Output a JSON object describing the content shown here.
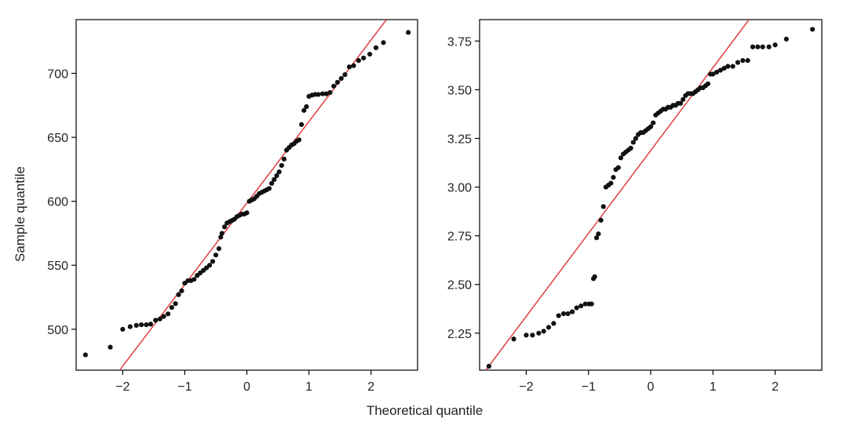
{
  "figure": {
    "xlabel": "Theoretical quantile",
    "ylabel": "Sample quantile"
  },
  "colors": {
    "points": "#111111",
    "ref_line": "#e0474c",
    "axes": "#000000"
  },
  "chart_data": [
    {
      "type": "scatter",
      "title": "",
      "xlim": [
        -2.75,
        2.75
      ],
      "ylim": [
        468,
        742
      ],
      "xticks": [
        -2,
        -1,
        0,
        1,
        2
      ],
      "xtick_labels": [
        "−2",
        "−1",
        "0",
        "1",
        "2"
      ],
      "yticks": [
        500,
        550,
        600,
        650,
        700
      ],
      "ytick_labels": [
        "500",
        "550",
        "600",
        "650",
        "700"
      ],
      "grid": false,
      "reference_line": {
        "points": [
          [
            -2.05,
            468
          ],
          [
            2.25,
            742
          ]
        ]
      },
      "points": [
        [
          -2.6,
          480
        ],
        [
          -2.2,
          486
        ],
        [
          -2.0,
          500
        ],
        [
          -1.88,
          502
        ],
        [
          -1.78,
          503
        ],
        [
          -1.7,
          503.5
        ],
        [
          -1.62,
          503.5
        ],
        [
          -1.55,
          504
        ],
        [
          -1.47,
          507
        ],
        [
          -1.4,
          508
        ],
        [
          -1.34,
          510
        ],
        [
          -1.27,
          512
        ],
        [
          -1.21,
          517
        ],
        [
          -1.15,
          520
        ],
        [
          -1.1,
          527
        ],
        [
          -1.05,
          530
        ],
        [
          -1.0,
          536
        ],
        [
          -0.95,
          538
        ],
        [
          -0.9,
          538
        ],
        [
          -0.85,
          539
        ],
        [
          -0.8,
          542
        ],
        [
          -0.75,
          544
        ],
        [
          -0.7,
          546
        ],
        [
          -0.65,
          548
        ],
        [
          -0.6,
          550
        ],
        [
          -0.55,
          553
        ],
        [
          -0.5,
          558
        ],
        [
          -0.45,
          563
        ],
        [
          -0.42,
          572
        ],
        [
          -0.4,
          575
        ],
        [
          -0.36,
          580
        ],
        [
          -0.32,
          583
        ],
        [
          -0.28,
          584
        ],
        [
          -0.24,
          585
        ],
        [
          -0.2,
          586
        ],
        [
          -0.16,
          588
        ],
        [
          -0.12,
          589
        ],
        [
          -0.08,
          590
        ],
        [
          -0.04,
          590
        ],
        [
          0.0,
          591
        ],
        [
          0.04,
          600
        ],
        [
          0.08,
          601
        ],
        [
          0.12,
          602
        ],
        [
          0.16,
          604
        ],
        [
          0.2,
          606
        ],
        [
          0.24,
          607
        ],
        [
          0.28,
          608
        ],
        [
          0.32,
          609
        ],
        [
          0.36,
          610
        ],
        [
          0.4,
          614
        ],
        [
          0.44,
          617
        ],
        [
          0.48,
          620
        ],
        [
          0.52,
          623
        ],
        [
          0.56,
          628
        ],
        [
          0.6,
          633
        ],
        [
          0.64,
          640
        ],
        [
          0.68,
          642
        ],
        [
          0.72,
          644
        ],
        [
          0.76,
          645
        ],
        [
          0.8,
          647
        ],
        [
          0.84,
          648
        ],
        [
          0.88,
          660
        ],
        [
          0.92,
          671
        ],
        [
          0.96,
          674
        ],
        [
          1.0,
          682
        ],
        [
          1.05,
          683
        ],
        [
          1.1,
          683.5
        ],
        [
          1.15,
          683.5
        ],
        [
          1.22,
          684
        ],
        [
          1.28,
          684
        ],
        [
          1.34,
          685
        ],
        [
          1.4,
          690
        ],
        [
          1.46,
          693
        ],
        [
          1.52,
          696
        ],
        [
          1.58,
          699
        ],
        [
          1.65,
          705
        ],
        [
          1.72,
          706
        ],
        [
          1.8,
          710
        ],
        [
          1.88,
          712
        ],
        [
          1.98,
          715
        ],
        [
          2.08,
          720
        ],
        [
          2.2,
          724
        ],
        [
          2.6,
          732
        ]
      ]
    },
    {
      "type": "scatter",
      "title": "",
      "xlim": [
        -2.75,
        2.75
      ],
      "ylim": [
        2.06,
        3.86
      ],
      "xticks": [
        -2,
        -1,
        0,
        1,
        2
      ],
      "xtick_labels": [
        "−2",
        "−1",
        "0",
        "1",
        "2"
      ],
      "yticks": [
        2.25,
        2.5,
        2.75,
        3.0,
        3.25,
        3.5,
        3.75
      ],
      "ytick_labels": [
        "2.25",
        "2.50",
        "2.75",
        "3.00",
        "3.25",
        "3.50",
        "3.75"
      ],
      "grid": false,
      "reference_line": {
        "points": [
          [
            -2.65,
            2.06
          ],
          [
            1.58,
            3.86
          ]
        ]
      },
      "points": [
        [
          -2.6,
          2.08
        ],
        [
          -2.2,
          2.22
        ],
        [
          -2.0,
          2.24
        ],
        [
          -1.9,
          2.24
        ],
        [
          -1.8,
          2.25
        ],
        [
          -1.72,
          2.26
        ],
        [
          -1.64,
          2.28
        ],
        [
          -1.56,
          2.3
        ],
        [
          -1.48,
          2.34
        ],
        [
          -1.4,
          2.35
        ],
        [
          -1.33,
          2.35
        ],
        [
          -1.26,
          2.36
        ],
        [
          -1.19,
          2.38
        ],
        [
          -1.12,
          2.39
        ],
        [
          -1.05,
          2.4
        ],
        [
          -0.99,
          2.4
        ],
        [
          -0.95,
          2.4
        ],
        [
          -0.92,
          2.53
        ],
        [
          -0.9,
          2.54
        ],
        [
          -0.87,
          2.74
        ],
        [
          -0.84,
          2.76
        ],
        [
          -0.8,
          2.83
        ],
        [
          -0.76,
          2.9
        ],
        [
          -0.72,
          3.0
        ],
        [
          -0.68,
          3.01
        ],
        [
          -0.64,
          3.02
        ],
        [
          -0.6,
          3.05
        ],
        [
          -0.56,
          3.09
        ],
        [
          -0.52,
          3.1
        ],
        [
          -0.48,
          3.15
        ],
        [
          -0.44,
          3.17
        ],
        [
          -0.4,
          3.18
        ],
        [
          -0.36,
          3.19
        ],
        [
          -0.32,
          3.2
        ],
        [
          -0.28,
          3.23
        ],
        [
          -0.24,
          3.25
        ],
        [
          -0.2,
          3.27
        ],
        [
          -0.16,
          3.28
        ],
        [
          -0.12,
          3.28
        ],
        [
          -0.08,
          3.29
        ],
        [
          -0.04,
          3.3
        ],
        [
          0.0,
          3.31
        ],
        [
          0.04,
          3.33
        ],
        [
          0.08,
          3.37
        ],
        [
          0.12,
          3.38
        ],
        [
          0.16,
          3.39
        ],
        [
          0.2,
          3.4
        ],
        [
          0.24,
          3.4
        ],
        [
          0.28,
          3.41
        ],
        [
          0.32,
          3.41
        ],
        [
          0.36,
          3.42
        ],
        [
          0.4,
          3.42
        ],
        [
          0.44,
          3.43
        ],
        [
          0.48,
          3.43
        ],
        [
          0.52,
          3.45
        ],
        [
          0.56,
          3.47
        ],
        [
          0.6,
          3.48
        ],
        [
          0.64,
          3.48
        ],
        [
          0.68,
          3.48
        ],
        [
          0.72,
          3.49
        ],
        [
          0.76,
          3.5
        ],
        [
          0.8,
          3.51
        ],
        [
          0.84,
          3.51
        ],
        [
          0.88,
          3.52
        ],
        [
          0.92,
          3.53
        ],
        [
          0.96,
          3.58
        ],
        [
          1.0,
          3.58
        ],
        [
          1.06,
          3.59
        ],
        [
          1.12,
          3.6
        ],
        [
          1.18,
          3.61
        ],
        [
          1.24,
          3.62
        ],
        [
          1.32,
          3.62
        ],
        [
          1.4,
          3.64
        ],
        [
          1.48,
          3.65
        ],
        [
          1.56,
          3.65
        ],
        [
          1.64,
          3.72
        ],
        [
          1.72,
          3.72
        ],
        [
          1.8,
          3.72
        ],
        [
          1.9,
          3.72
        ],
        [
          2.0,
          3.73
        ],
        [
          2.18,
          3.76
        ],
        [
          2.6,
          3.81
        ]
      ]
    }
  ]
}
